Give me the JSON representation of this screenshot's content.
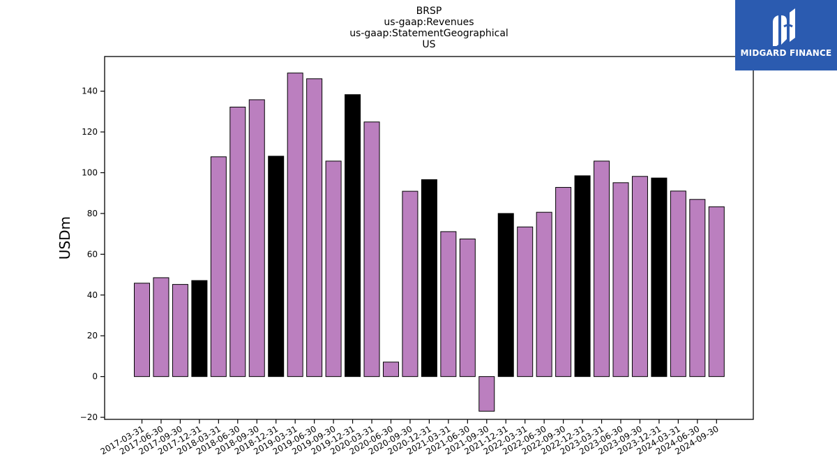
{
  "chart_data": {
    "type": "bar",
    "title_lines": [
      "BRSP",
      "us-gaap:Revenues",
      "us-gaap:StatementGeographical",
      "US"
    ],
    "xlabel": "",
    "ylabel": "USDm",
    "ylim": [
      -21,
      157
    ],
    "yticks": [
      -20,
      0,
      20,
      40,
      60,
      80,
      100,
      120,
      140
    ],
    "grid": false,
    "categories": [
      "2017-03-31",
      "2017-06-30",
      "2017-09-30",
      "2017-12-31",
      "2018-03-31",
      "2018-06-30",
      "2018-09-30",
      "2018-12-31",
      "2019-03-31",
      "2019-06-30",
      "2019-09-30",
      "2019-12-31",
      "2020-03-31",
      "2020-06-30",
      "2020-09-30",
      "2020-12-31",
      "2021-03-31",
      "2021-06-30",
      "2021-09-30",
      "2021-12-31",
      "2022-03-31",
      "2022-06-30",
      "2022-09-30",
      "2022-12-31",
      "2023-03-31",
      "2023-06-30",
      "2023-09-30",
      "2023-12-31",
      "2024-03-31",
      "2024-06-30",
      "2024-09-30"
    ],
    "values": [
      45.8,
      48.5,
      45.2,
      47.1,
      107.8,
      132.2,
      135.8,
      108.1,
      148.9,
      146.1,
      105.7,
      138.3,
      124.9,
      7.1,
      90.9,
      96.6,
      71.1,
      67.5,
      -17.0,
      80.0,
      73.4,
      80.6,
      92.8,
      98.5,
      105.7,
      95.1,
      98.2,
      97.4,
      91.0,
      86.9,
      83.3
    ],
    "colors": {
      "quarter": "#bb7fbf",
      "year_end": "#000000",
      "edge": "#000000"
    }
  },
  "logo": {
    "text": "MIDGARD FINANCE",
    "background": "#2b5bb0"
  }
}
